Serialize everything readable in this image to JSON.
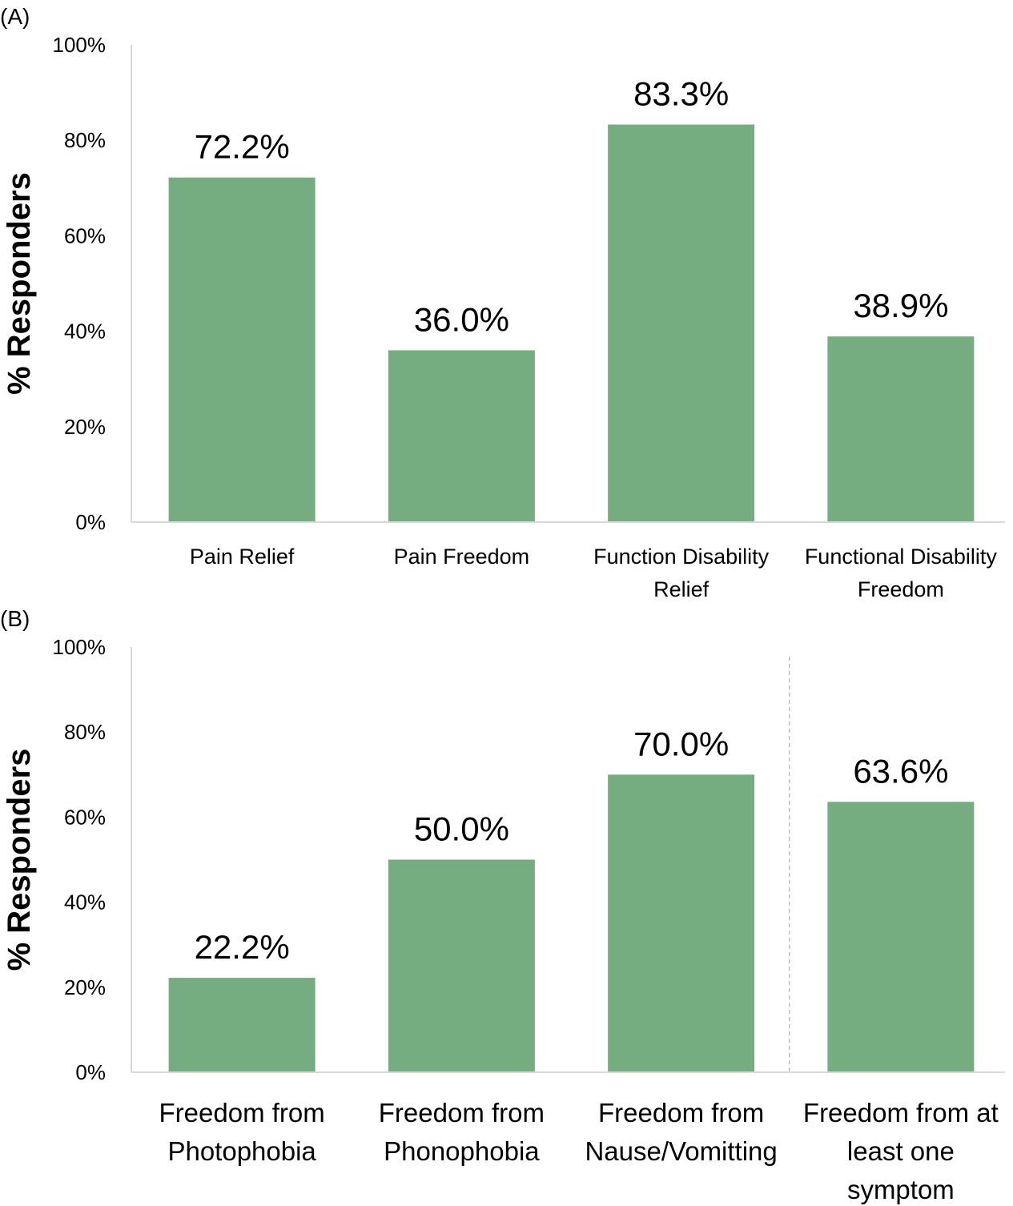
{
  "chart_data": [
    {
      "type": "bar",
      "panel": "(A)",
      "categories": [
        [
          "Pain Relief"
        ],
        [
          "Pain Freedom"
        ],
        [
          "Function Disability",
          "Relief"
        ],
        [
          "Functional Disability",
          "Freedom"
        ]
      ],
      "values": [
        72.2,
        36.0,
        83.3,
        38.9
      ],
      "data_labels": [
        "72.2%",
        "36.0%",
        "83.3%",
        "38.9%"
      ],
      "ylabel": "% Responders",
      "xlabel": "",
      "ylim": [
        0,
        100
      ],
      "yticks": [
        "0%",
        "20%",
        "40%",
        "60%",
        "80%",
        "100%"
      ],
      "color": "#76ad80",
      "grid": false
    },
    {
      "type": "bar",
      "panel": "(B)",
      "categories": [
        [
          "Freedom from",
          "Photophobia"
        ],
        [
          "Freedom from",
          "Phonophobia"
        ],
        [
          "Freedom from",
          "Nause/Vomitting"
        ],
        [
          "Freedom from at",
          "least one",
          "symptom"
        ]
      ],
      "values": [
        22.2,
        50.0,
        70.0,
        63.6
      ],
      "data_labels": [
        "22.2%",
        "50.0%",
        "70.0%",
        "63.6%"
      ],
      "ylabel": "% Responders",
      "xlabel": "",
      "ylim": [
        0,
        100
      ],
      "yticks": [
        "0%",
        "20%",
        "40%",
        "60%",
        "80%",
        "100%"
      ],
      "color": "#76ad80",
      "grid": false,
      "separator_before_category": 3
    }
  ]
}
